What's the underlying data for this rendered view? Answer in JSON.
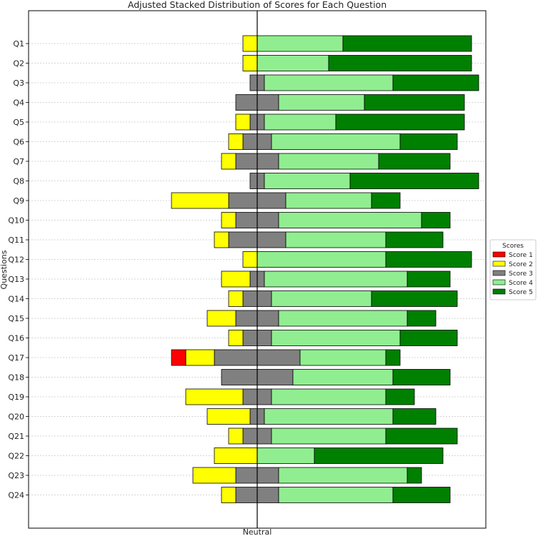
{
  "chart_data": {
    "type": "bar",
    "orientation": "horizontal-diverging-stacked",
    "title": "Adjusted Stacked Distribution of Scores for Each Question",
    "xlabel": "Neutral",
    "ylabel": "Questions",
    "categories": [
      "Q1",
      "Q2",
      "Q3",
      "Q4",
      "Q5",
      "Q6",
      "Q7",
      "Q8",
      "Q9",
      "Q10",
      "Q11",
      "Q12",
      "Q13",
      "Q14",
      "Q15",
      "Q16",
      "Q17",
      "Q18",
      "Q19",
      "Q20",
      "Q21",
      "Q22",
      "Q23",
      "Q24"
    ],
    "xlim": [
      -16,
      16
    ],
    "grid": "horizontal-dashed",
    "legend": {
      "title": "Scores",
      "position": "right",
      "entries": [
        "Score 1",
        "Score 2",
        "Score 3",
        "Score 4",
        "Score 5"
      ]
    },
    "colors": {
      "Score 1": "#ff0000",
      "Score 2": "#ffff00",
      "Score 3": "#808080",
      "Score 4": "#90ee90",
      "Score 5": "#008000"
    },
    "series": [
      {
        "name": "Score 1",
        "values": [
          0,
          0,
          0,
          0,
          0,
          0,
          0,
          0,
          0,
          0,
          0,
          0,
          0,
          0,
          0,
          0,
          1,
          0,
          0,
          0,
          0,
          0,
          0,
          0
        ]
      },
      {
        "name": "Score 2",
        "values": [
          1,
          1,
          0,
          0,
          1,
          1,
          1,
          0,
          4,
          1,
          1,
          1,
          2,
          1,
          2,
          1,
          2,
          0,
          4,
          3,
          1,
          3,
          3,
          1
        ]
      },
      {
        "name": "Score 3",
        "values": [
          0,
          0,
          1,
          3,
          1,
          2,
          3,
          1,
          4,
          3,
          4,
          0,
          1,
          2,
          3,
          2,
          6,
          5,
          2,
          1,
          2,
          0,
          3,
          3
        ]
      },
      {
        "name": "Score 4",
        "values": [
          6,
          5,
          9,
          6,
          5,
          9,
          7,
          6,
          6,
          10,
          7,
          9,
          10,
          7,
          9,
          9,
          6,
          7,
          8,
          9,
          8,
          4,
          9,
          8
        ]
      },
      {
        "name": "Score 5",
        "values": [
          9,
          10,
          6,
          7,
          9,
          4,
          5,
          9,
          2,
          2,
          4,
          6,
          3,
          6,
          2,
          4,
          1,
          4,
          2,
          3,
          5,
          9,
          1,
          4
        ]
      }
    ]
  }
}
